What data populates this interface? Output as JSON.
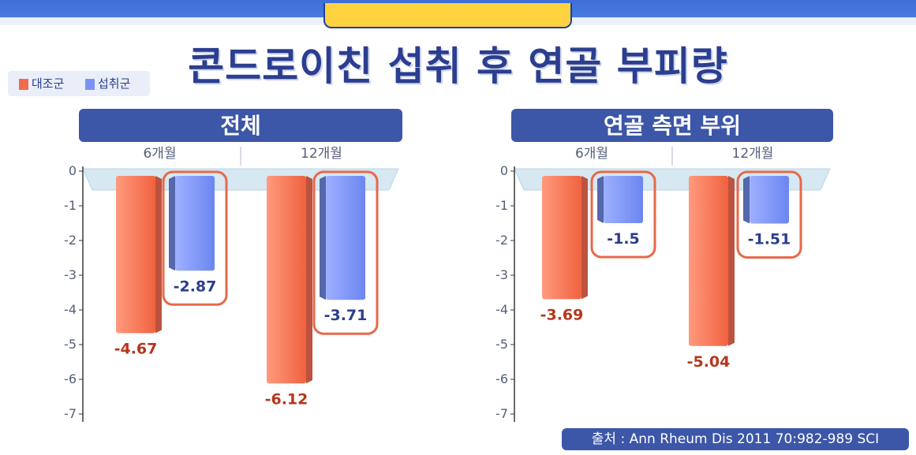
{
  "title": "콘드로이친 섭취 후 연골 부피량",
  "legend": {
    "items": [
      {
        "label": "대조군",
        "color": "#f26b4f"
      },
      {
        "label": "섭취군",
        "color": "#7b93f5"
      }
    ]
  },
  "source": "출처 : Ann Rheum Dis 2011 70:982-989 SCI",
  "chart_data": [
    {
      "type": "bar",
      "title": "전체",
      "categories": [
        "6개월",
        "12개월"
      ],
      "series": [
        {
          "name": "대조군",
          "values": [
            -4.67,
            -6.12
          ]
        },
        {
          "name": "섭취군",
          "values": [
            -2.87,
            -3.71
          ]
        }
      ],
      "value_labels": [
        [
          "-4.67",
          "-6.12"
        ],
        [
          "-2.87",
          "-3.71"
        ]
      ],
      "ylim": [
        -7,
        0
      ],
      "yticks": [
        0,
        -1,
        -2,
        -3,
        -4,
        -5,
        -6,
        -7
      ],
      "ytick_labels": [
        "0",
        "-1",
        "-2",
        "-3",
        "-4",
        "-5",
        "-6",
        "-7"
      ],
      "grid": false,
      "legend": "top-left"
    },
    {
      "type": "bar",
      "title": "연골 측면 부위",
      "categories": [
        "6개월",
        "12개월"
      ],
      "series": [
        {
          "name": "대조군",
          "values": [
            -3.69,
            -5.04
          ]
        },
        {
          "name": "섭취군",
          "values": [
            -1.5,
            -1.51
          ]
        }
      ],
      "value_labels": [
        [
          "-3.69",
          "-5.04"
        ],
        [
          "-1.5",
          "-1.51"
        ]
      ],
      "ylim": [
        -7,
        0
      ],
      "yticks": [
        0,
        -1,
        -2,
        -3,
        -4,
        -5,
        -6,
        -7
      ],
      "ytick_labels": [
        "0",
        "-1",
        "-2",
        "-3",
        "-4",
        "-5",
        "-6",
        "-7"
      ],
      "grid": false,
      "legend": "top-left"
    }
  ],
  "colors": {
    "control": "#f26b4f",
    "intake": "#7b93f5",
    "header": "#3c56a8",
    "highlight": "#e8684a",
    "title": "#2b3e8f"
  }
}
